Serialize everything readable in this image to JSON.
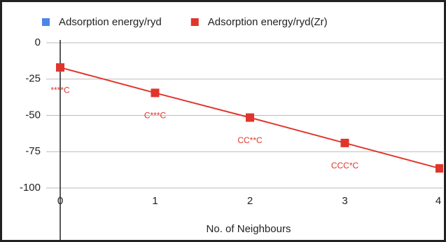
{
  "chart_data": {
    "type": "line",
    "xlabel": "No. of Neighbours",
    "x": [
      0,
      1,
      2,
      3,
      4
    ],
    "series": [
      {
        "name": "Adsorption energy/ryd",
        "color": "#4a86e8"
      },
      {
        "name": "Adsorption energy/ryd(Zr)",
        "color": "#e0352b",
        "values": [
          -17,
          -34.5,
          -51.5,
          -69,
          -86.5
        ],
        "point_labels": [
          "****C",
          "C***C",
          "CC**C",
          "CCC*C"
        ]
      }
    ],
    "xlim": [
      0,
      4
    ],
    "xticks": [
      0,
      1,
      2,
      3,
      4
    ],
    "ylim": [
      -100,
      0
    ],
    "yticks": [
      0,
      -25,
      -50,
      -75,
      -100
    ],
    "grid": true
  }
}
